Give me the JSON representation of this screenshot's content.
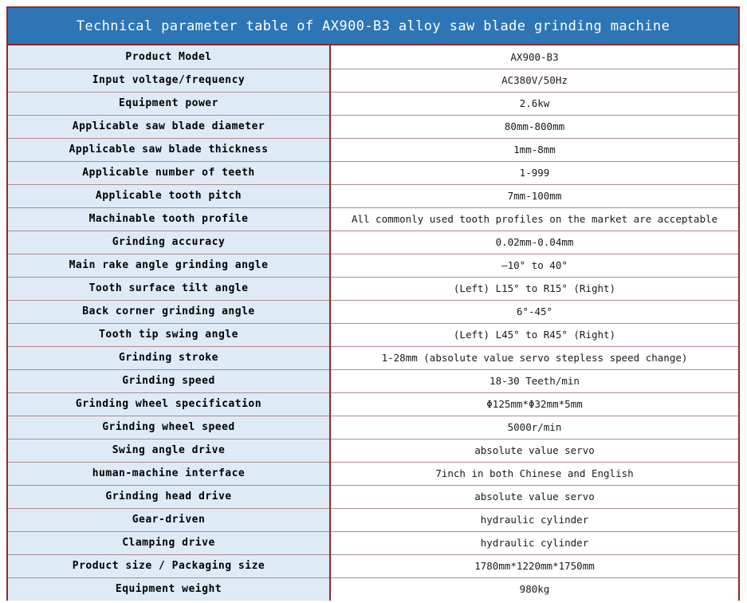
{
  "title": "Technical parameter table of AX900-B3 alloy saw blade grinding machine",
  "rows": [
    {
      "param": "Product Model",
      "value": "AX900-B3"
    },
    {
      "param": "Input voltage/frequency",
      "value": "AC380V/50Hz"
    },
    {
      "param": "Equipment power",
      "value": "2.6kw"
    },
    {
      "param": "Applicable saw blade diameter",
      "value": "80mm-800mm"
    },
    {
      "param": "Applicable saw blade thickness",
      "value": "1mm-8mm"
    },
    {
      "param": "Applicable number of teeth",
      "value": "1-999"
    },
    {
      "param": "Applicable tooth pitch",
      "value": "7mm-100mm"
    },
    {
      "param": "Machinable tooth profile",
      "value": "All commonly used tooth profiles on the market are acceptable"
    },
    {
      "param": "Grinding accuracy",
      "value": "0.02mm-0.04mm"
    },
    {
      "param": "Main rake angle grinding angle",
      "value": "—10° to 40°"
    },
    {
      "param": "Tooth surface tilt angle",
      "value": "(Left) L15° to R15° (Right)"
    },
    {
      "param": "Back corner grinding angle",
      "value": "6°-45°"
    },
    {
      "param": "Tooth tip swing angle",
      "value": "(Left) L45° to R45° (Right)"
    },
    {
      "param": "Grinding stroke",
      "value": "1-28mm (absolute value servo stepless speed change)"
    },
    {
      "param": "Grinding speed",
      "value": "18-30 Teeth/min"
    },
    {
      "param": "Grinding wheel specification",
      "value": "Φ125mm*Φ32mm*5mm"
    },
    {
      "param": "Grinding wheel speed",
      "value": "5000r/min"
    },
    {
      "param": "Swing angle drive",
      "value": "absolute value servo"
    },
    {
      "param": "human-machine interface",
      "value": "7inch in both Chinese and English"
    },
    {
      "param": "Grinding head drive",
      "value": "absolute value servo"
    },
    {
      "param": "Gear-driven",
      "value": "hydraulic cylinder"
    },
    {
      "param": "Clamping drive",
      "value": "hydraulic cylinder"
    },
    {
      "param": "Product size / Packaging size",
      "value": "1780mm*1220mm*1750mm"
    },
    {
      "param": "Equipment weight",
      "value": "980kg"
    }
  ],
  "colors": {
    "header_bg": "#2e75b6",
    "label_bg": "#deebf7",
    "border": "#8a2b2b"
  }
}
